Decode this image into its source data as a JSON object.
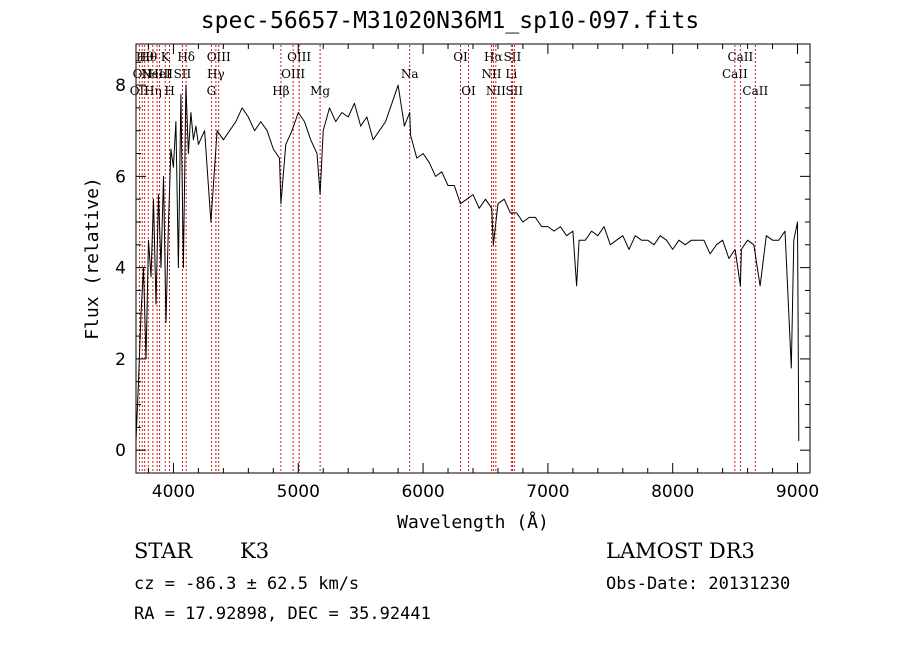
{
  "title": "spec-56657-M31020N36M1_sp10-097.fits",
  "info": {
    "class": "STAR",
    "subclass": "K3",
    "survey": "LAMOST DR3",
    "cz": "cz = -86.3 ± 62.5 km/s",
    "obs_date": "Obs-Date: 20131230",
    "radec": "RA =  17.92898, DEC =  35.92441"
  },
  "colors": {
    "spectrum": "#000000",
    "lines": "#cc0000",
    "axis": "#000000"
  },
  "chart_data": {
    "type": "line",
    "title": "spec-56657-M31020N36M1_sp10-097.fits",
    "xlabel": "Wavelength (Å)",
    "ylabel": "Flux (relative)",
    "xlim": [
      3700,
      9100
    ],
    "ylim": [
      -0.5,
      8.9
    ],
    "x_ticks": [
      4000,
      5000,
      6000,
      7000,
      8000,
      9000
    ],
    "y_ticks": [
      0,
      2,
      4,
      6,
      8
    ],
    "grid": false,
    "series": [
      {
        "x": [
          3700,
          3720,
          3740,
          3760,
          3780,
          3800,
          3820,
          3840,
          3860,
          3880,
          3900,
          3920,
          3940,
          3960,
          3980,
          4000,
          4020,
          4040,
          4060,
          4080,
          4100,
          4120,
          4140,
          4160,
          4180,
          4200,
          4250,
          4300,
          4350,
          4400,
          4450,
          4500,
          4550,
          4600,
          4650,
          4700,
          4750,
          4800,
          4850,
          4861,
          4900,
          4950,
          5000,
          5050,
          5100,
          5150,
          5175,
          5200,
          5250,
          5300,
          5350,
          5400,
          5450,
          5500,
          5550,
          5600,
          5650,
          5700,
          5750,
          5800,
          5850,
          5893,
          5900,
          5950,
          6000,
          6050,
          6100,
          6150,
          6200,
          6250,
          6300,
          6350,
          6400,
          6450,
          6500,
          6550,
          6563,
          6600,
          6650,
          6700,
          6750,
          6800,
          6850,
          6900,
          6950,
          7000,
          7050,
          7100,
          7150,
          7200,
          7230,
          7250,
          7300,
          7350,
          7400,
          7450,
          7500,
          7550,
          7600,
          7650,
          7700,
          7750,
          7800,
          7850,
          7900,
          7950,
          8000,
          8050,
          8100,
          8150,
          8200,
          8250,
          8300,
          8350,
          8400,
          8450,
          8500,
          8542,
          8550,
          8600,
          8650,
          8700,
          8750,
          8800,
          8850,
          8900,
          8930,
          8950,
          8970,
          9000,
          9010
        ],
        "y": [
          0.2,
          1.5,
          3.0,
          4.0,
          2.0,
          4.6,
          3.8,
          5.5,
          3.2,
          5.6,
          4.0,
          6.0,
          2.8,
          5.0,
          6.6,
          6.2,
          7.2,
          4.0,
          7.8,
          4.0,
          8.0,
          6.5,
          7.4,
          6.8,
          7.1,
          6.7,
          7.0,
          5.0,
          7.0,
          6.8,
          7.0,
          7.2,
          7.5,
          7.3,
          7.0,
          7.2,
          7.0,
          6.6,
          6.4,
          5.4,
          6.7,
          7.0,
          7.4,
          7.2,
          6.8,
          6.5,
          5.6,
          7.0,
          7.5,
          7.2,
          7.4,
          7.3,
          7.6,
          7.1,
          7.3,
          6.8,
          7.0,
          7.2,
          7.6,
          8.0,
          7.1,
          7.4,
          6.9,
          6.4,
          6.5,
          6.3,
          6.0,
          6.1,
          5.8,
          5.8,
          5.4,
          5.5,
          5.6,
          5.3,
          5.5,
          5.3,
          4.5,
          5.4,
          5.5,
          5.2,
          5.2,
          5.0,
          5.1,
          5.1,
          4.9,
          4.9,
          4.8,
          4.9,
          4.7,
          4.8,
          3.6,
          4.6,
          4.6,
          4.8,
          4.7,
          4.9,
          4.5,
          4.6,
          4.7,
          4.4,
          4.7,
          4.6,
          4.6,
          4.5,
          4.7,
          4.6,
          4.4,
          4.6,
          4.5,
          4.6,
          4.6,
          4.6,
          4.3,
          4.5,
          4.6,
          4.2,
          4.4,
          3.6,
          4.4,
          4.6,
          4.5,
          3.6,
          4.7,
          4.6,
          4.6,
          4.8,
          3.0,
          1.8,
          4.6,
          5.0,
          0.2
        ]
      }
    ],
    "lines": [
      {
        "wave": 3727,
        "label": "OII",
        "row": 2
      },
      {
        "wave": 3750,
        "label": "OII",
        "row": 1
      },
      {
        "wave": 3770,
        "label": "Hθ",
        "row": 0
      },
      {
        "wave": 3798,
        "label": "Hθ",
        "row": 0
      },
      {
        "wave": 3835,
        "label": "Hη",
        "row": 2
      },
      {
        "wave": 3869,
        "label": "NeIII",
        "row": 1
      },
      {
        "wave": 3889,
        "label": "HeI",
        "row": 1
      },
      {
        "wave": 3934,
        "label": "K",
        "row": 0
      },
      {
        "wave": 3969,
        "label": "H",
        "row": 2
      },
      {
        "wave": 4072,
        "label": "SII",
        "row": 1
      },
      {
        "wave": 4102,
        "label": "Hδ",
        "row": 0
      },
      {
        "wave": 4304,
        "label": "G",
        "row": 2
      },
      {
        "wave": 4340,
        "label": "Hγ",
        "row": 1
      },
      {
        "wave": 4363,
        "label": "OIII",
        "row": 0
      },
      {
        "wave": 4861,
        "label": "Hβ",
        "row": 2
      },
      {
        "wave": 4959,
        "label": "OIII",
        "row": 1
      },
      {
        "wave": 5007,
        "label": "OIII",
        "row": 0
      },
      {
        "wave": 5175,
        "label": "Mg",
        "row": 2
      },
      {
        "wave": 5893,
        "label": "Na",
        "row": 1
      },
      {
        "wave": 6300,
        "label": "OI",
        "row": 0
      },
      {
        "wave": 6364,
        "label": "OI",
        "row": 2
      },
      {
        "wave": 6548,
        "label": "NII",
        "row": 1
      },
      {
        "wave": 6563,
        "label": "Hα",
        "row": 0
      },
      {
        "wave": 6583,
        "label": "NII",
        "row": 2
      },
      {
        "wave": 6707,
        "label": "Li",
        "row": 1
      },
      {
        "wave": 6716,
        "label": "SII",
        "row": 0
      },
      {
        "wave": 6731,
        "label": "SII",
        "row": 2
      },
      {
        "wave": 8498,
        "label": "CaII",
        "row": 1
      },
      {
        "wave": 8542,
        "label": "CaII",
        "row": 0
      },
      {
        "wave": 8662,
        "label": "CaII",
        "row": 2
      }
    ]
  }
}
